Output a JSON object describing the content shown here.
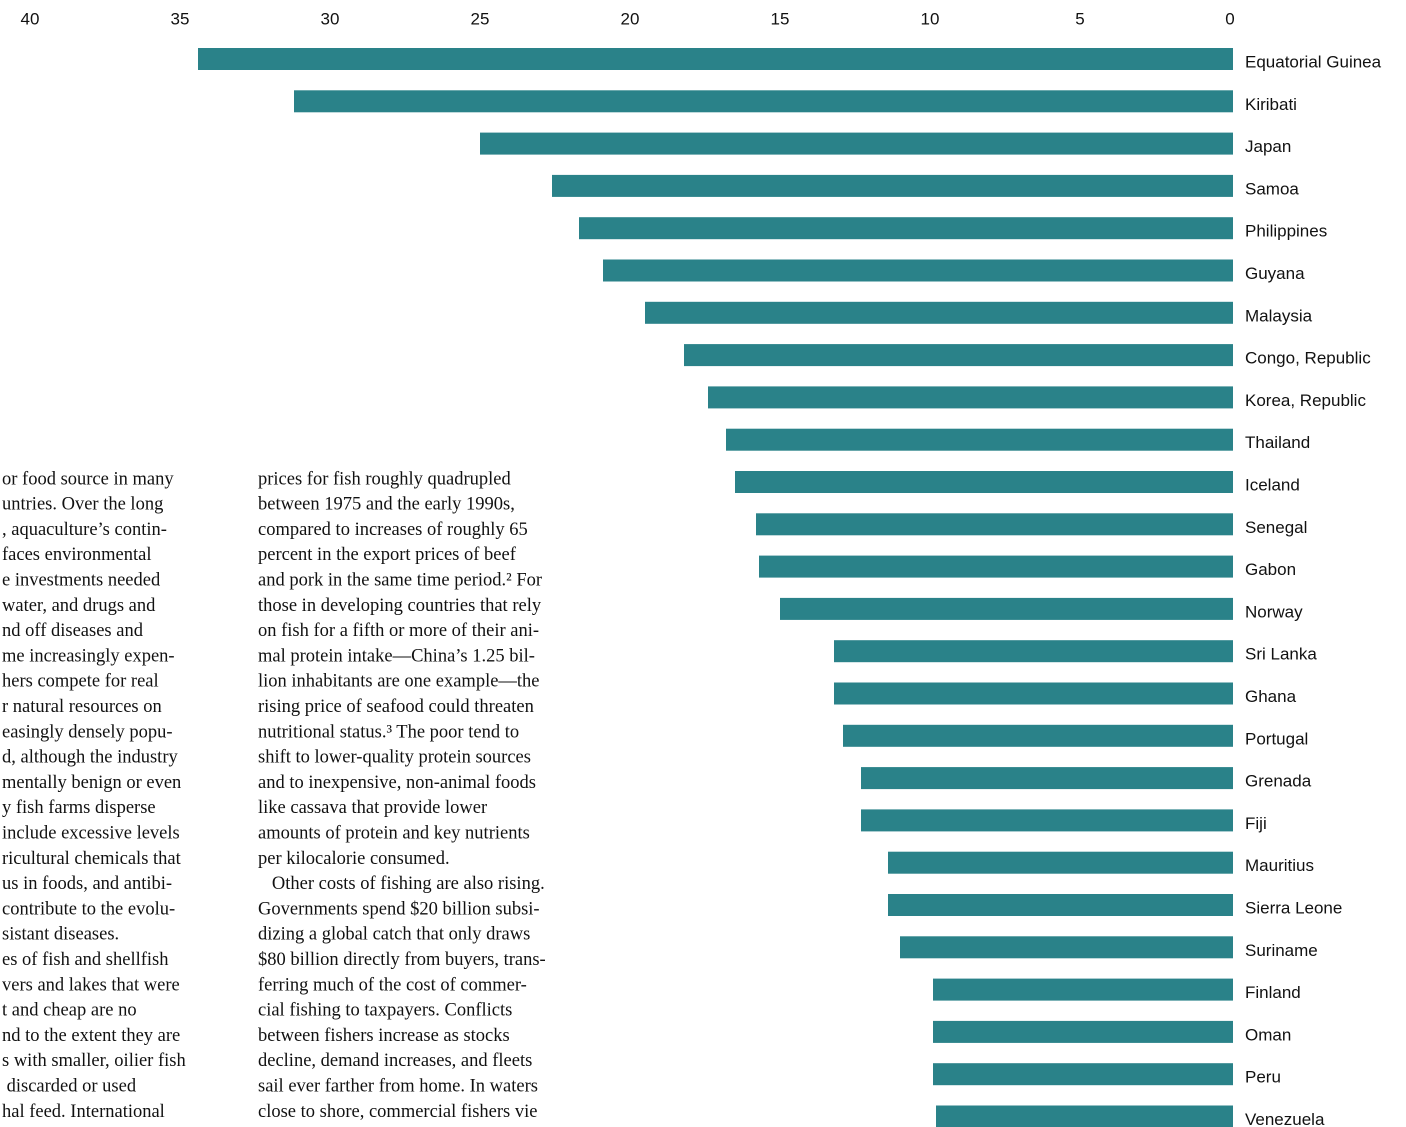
{
  "chart_data": {
    "type": "barh",
    "categories": [
      "Equatorial Guinea",
      "Kiribati",
      "Japan",
      "Samoa",
      "Philippines",
      "Guyana",
      "Malaysia",
      "Congo, Republic",
      "Korea, Republic",
      "Thailand",
      "Iceland",
      "Senegal",
      "Gabon",
      "Norway",
      "Sri Lanka",
      "Ghana",
      "Portugal",
      "Grenada",
      "Fiji",
      "Mauritius",
      "Sierra Leone",
      "Suriname",
      "Finland",
      "Oman",
      "Peru",
      "Venezuela"
    ],
    "values": [
      34.5,
      31.3,
      25.1,
      22.7,
      21.8,
      21.0,
      19.6,
      18.3,
      17.5,
      16.9,
      16.6,
      15.9,
      15.8,
      15.1,
      13.3,
      13.3,
      13.0,
      12.4,
      12.4,
      11.5,
      11.5,
      11.1,
      10.0,
      10.0,
      10.0,
      9.9
    ],
    "color": "#2a8289",
    "xlim": [
      0,
      40
    ],
    "xticks": [
      0,
      5,
      10,
      15,
      20,
      25,
      30,
      35,
      40
    ],
    "x_reversed": true
  },
  "text_columns": [
    [
      "or food source in many",
      "untries. Over the long",
      ", aquaculture’s contin-",
      "faces environmental",
      "e investments needed",
      "water, and drugs and",
      "nd off diseases and",
      "me increasingly expen-",
      "hers compete for real",
      "r natural resources on",
      "easingly densely popu-",
      "d, although the industry",
      "mentally benign or even",
      "y fish farms disperse",
      "include excessive levels",
      "ricultural chemicals that",
      "us in foods, and antibi-",
      "contribute to the evolu-",
      "sistant diseases.",
      "es of fish and shellfish",
      "vers and lakes that were",
      "t and cheap are no",
      "nd to the extent they are",
      "s with smaller, oilier fish",
      " discarded or used",
      "hal feed. International"
    ],
    [
      "prices for fish roughly quadrupled",
      "between 1975 and the early 1990s,",
      "compared to increases of roughly 65",
      "percent in the export prices of beef",
      "and pork in the same time period.² For",
      "those in developing countries that rely",
      "on fish for a fifth or more of their ani-",
      "mal protein intake—China’s 1.25 bil-",
      "lion inhabitants are one example—the",
      "rising price of seafood could threaten",
      "nutritional status.³ The poor tend to",
      "shift to lower-quality protein sources",
      "and to inexpensive, non-animal foods",
      "like cassava that provide lower",
      "amounts of protein and key nutrients",
      "per kilocalorie consumed.",
      "   Other costs of fishing are also rising.",
      "Governments spend $20 billion subsi-",
      "dizing a global catch that only draws",
      "$80 billion directly from buyers, trans-",
      "ferring much of the cost of commer-",
      "cial fishing to taxpayers. Conflicts",
      "between fishers increase as stocks",
      "decline, demand increases, and fleets",
      "sail ever farther from home. In waters",
      "close to shore, commercial fishers vie"
    ]
  ]
}
